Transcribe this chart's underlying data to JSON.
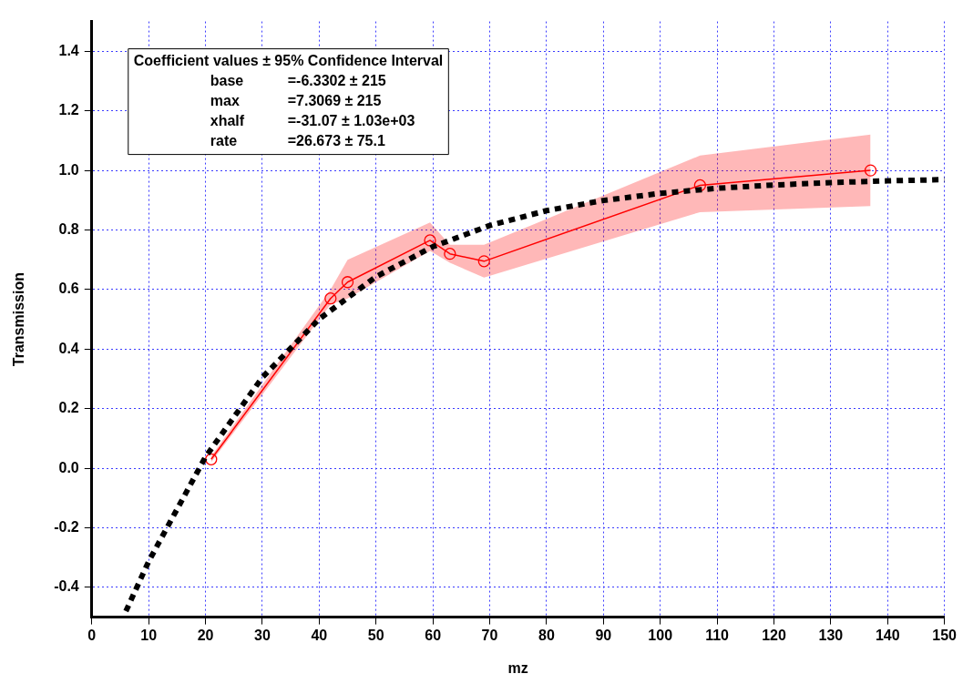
{
  "chart_data": {
    "type": "line",
    "xlabel": "mz",
    "ylabel": "Transmission",
    "xlim": [
      0,
      150
    ],
    "xticks": [
      0,
      10,
      20,
      30,
      40,
      50,
      60,
      70,
      80,
      90,
      100,
      110,
      120,
      130,
      140,
      150
    ],
    "ylim": [
      -0.5,
      1.5
    ],
    "yticks": [
      -0.4,
      -0.2,
      {
        "value": 0,
        "label": "0.0"
      },
      0.2,
      0.4,
      0.6,
      0.8,
      {
        "value": 1,
        "label": "1.0"
      },
      1.2,
      1.4
    ],
    "grid": true,
    "legend": false,
    "series": [
      {
        "color": "#ff0000",
        "marker": "circle",
        "line_style": "solid",
        "x": [
          21,
          42,
          45,
          59.5,
          63,
          69,
          107,
          137
        ],
        "values": [
          0.03,
          0.57,
          0.625,
          0.765,
          0.72,
          0.695,
          0.95,
          1.0
        ],
        "lower": [
          0.02,
          0.55,
          0.57,
          0.73,
          0.69,
          0.64,
          0.86,
          0.88
        ],
        "upper": [
          0.04,
          0.6,
          0.7,
          0.825,
          0.75,
          0.75,
          1.05,
          1.12
        ]
      },
      {
        "color": "#000000",
        "marker": "none",
        "line_style": "dashed",
        "x": [
          6,
          10,
          20,
          30,
          40,
          50,
          60,
          70,
          80,
          90,
          100,
          110,
          120,
          130,
          140,
          150
        ],
        "values": [
          -0.48,
          -0.313,
          0.038,
          0.305,
          0.501,
          0.643,
          0.744,
          0.815,
          0.865,
          0.899,
          0.923,
          0.94,
          0.951,
          0.959,
          0.965,
          0.969
        ]
      }
    ],
    "annotations": [
      "Coefficient values ± 95% Confidence Interval",
      "base =-6.3302 ± 215",
      "max =7.3069 ± 215",
      "xhalf =-31.07 ± 1.03e+03",
      "rate =26.673 ± 75.1"
    ]
  }
}
